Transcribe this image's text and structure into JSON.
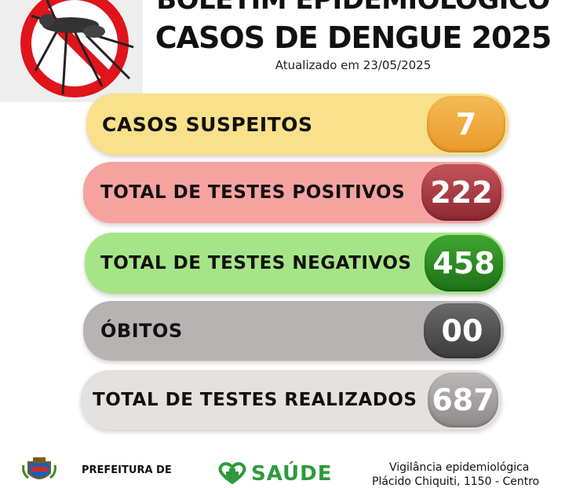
{
  "header": {
    "title_line1": "BOLETIM EPIDEMIOLÓGICO",
    "title_line2": "CASOS DE DENGUE 2025",
    "updated": "Atualizado em 23/05/2025"
  },
  "stats": [
    {
      "label": "CASOS SUSPEITOS",
      "value": "7",
      "color": "#f9e08a",
      "badge_color": "#f0a93a"
    },
    {
      "label": "TOTAL DE TESTES POSITIVOS",
      "value": "222",
      "color": "#f6a3a0",
      "badge_color": "#a8353b"
    },
    {
      "label": "TOTAL DE TESTES NEGATIVOS",
      "value": "458",
      "color": "#a6e587",
      "badge_color": "#2e8c24"
    },
    {
      "label": "ÓBITOS",
      "value": "00",
      "color": "#b8b3b3",
      "badge_color": "#555555"
    },
    {
      "label": "TOTAL DE TESTES REALIZADOS",
      "value": "687",
      "color": "#e4e1e1",
      "badge_color": "#a9a4a4"
    }
  ],
  "footer": {
    "prefeitura": "PREFEITURA DE",
    "saude": "SAÚDE",
    "vigilancia": "Vigilância epidemiológica",
    "address": "Plácido Chiquiti, 1150 - Centro"
  }
}
